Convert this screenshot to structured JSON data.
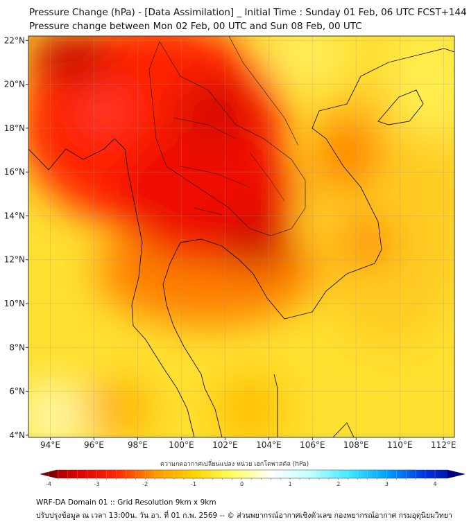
{
  "header": {
    "title": "Pressure Change (hPa) - [Data Assimilation] _ Initial Time : Sunday 01 Feb, 06 UTC FCST+144",
    "subtitle": "Pressure change between Mon 02 Feb, 00 UTC and Sun 08 Feb, 00 UTC"
  },
  "map": {
    "lat_labels": [
      "22°N",
      "20°N",
      "18°N",
      "16°N",
      "14°N",
      "12°N",
      "10°N",
      "8°N",
      "6°N",
      "4°N"
    ],
    "lat_values": [
      22,
      20,
      18,
      16,
      14,
      12,
      10,
      8,
      6,
      4
    ],
    "lon_labels": [
      "94°E",
      "96°E",
      "98°E",
      "100°E",
      "102°E",
      "104°E",
      "106°E",
      "108°E",
      "110°E",
      "112°E"
    ],
    "lon_values": [
      94,
      96,
      98,
      100,
      102,
      104,
      106,
      108,
      110,
      112
    ],
    "extent": {
      "lon": [
        93,
        112.5
      ],
      "lat": [
        3.9,
        22.2
      ]
    }
  },
  "colorbar": {
    "label": "ความกดอากาศเปลี่ยนแปลง หน่วย เฮกโตพาสคัล (hPa)",
    "ticks": [
      "-4",
      "-3",
      "-2",
      "-1",
      "0",
      "1",
      "2",
      "3",
      "4"
    ],
    "range": [
      -4,
      4
    ],
    "colors": [
      "#800000",
      "#e00000",
      "#ff2a00",
      "#ff9a00",
      "#ffd400",
      "#ffff60",
      "#ffffff",
      "#c0ffff",
      "#40e8ff",
      "#00a0ff",
      "#0030e0",
      "#000080"
    ]
  },
  "footer": {
    "line1": "WRF-DA Domain 01 :: Grid Resolution 9km x 9km",
    "line2": "ปรับปรุงข้อมูล ณ เวลา 13:00น. วัน อา. ที่ 01 ก.พ. 2569 -- © ส่วนพยากรณ์อากาศเชิงตัวเลข กองพยากรณ์อากาศ กรมอุตุนิยมวิทยา"
  }
}
